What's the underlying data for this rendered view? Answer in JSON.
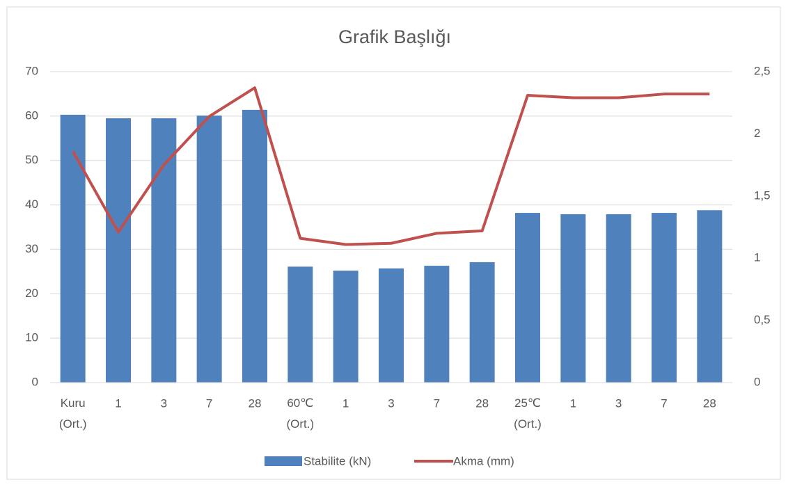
{
  "chart_data": {
    "type": "bar-line",
    "title": "Grafik Başlığı",
    "categories": [
      "Kuru (Ort.)",
      "1",
      "3",
      "7",
      "28",
      "60℃ (Ort.)",
      "1",
      "3",
      "7",
      "28",
      "25℃ (Ort.)",
      "1",
      "3",
      "7",
      "28"
    ],
    "series": [
      {
        "name": "Stabilite (kN)",
        "type": "bar",
        "color": "#4f81bd",
        "values": [
          60.3,
          59.5,
          59.5,
          60.1,
          61.4,
          26.1,
          25.2,
          25.7,
          26.3,
          27.1,
          38.2,
          37.9,
          37.9,
          38.2,
          38.8
        ]
      },
      {
        "name": "Akma (mm)",
        "type": "line",
        "axis": "y2",
        "color": "#c0504d",
        "values": [
          1.86,
          1.21,
          1.75,
          2.14,
          2.37,
          1.16,
          1.11,
          1.12,
          1.2,
          1.22,
          2.31,
          2.29,
          2.29,
          2.32,
          2.32
        ]
      }
    ],
    "ylim": [
      0,
      70
    ],
    "yticks": [
      0,
      10,
      20,
      30,
      40,
      50,
      60,
      70
    ],
    "y2lim": [
      0,
      2.5
    ],
    "y2ticks": [
      0,
      {
        "value": 0.5,
        "label": "0,5"
      },
      1,
      {
        "value": 1.5,
        "label": "1,5"
      },
      2,
      {
        "value": 2.5,
        "label": "2,5"
      }
    ],
    "grid": true,
    "legend": "bottom"
  }
}
